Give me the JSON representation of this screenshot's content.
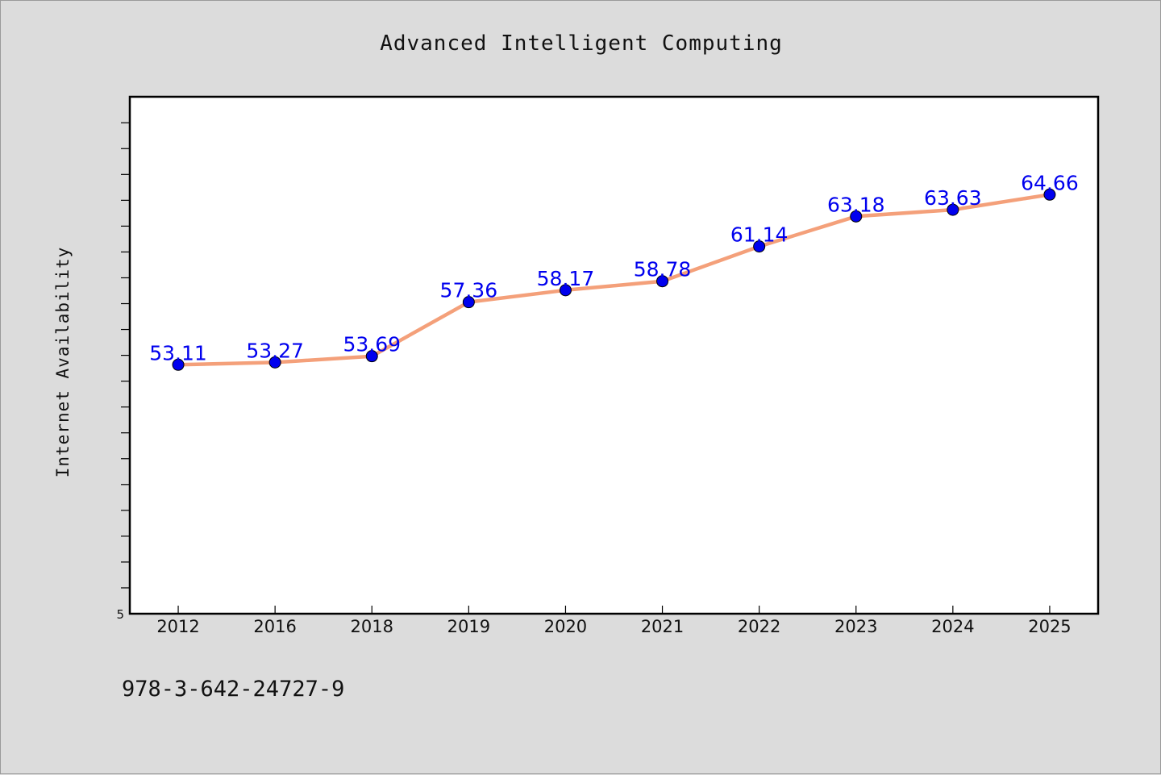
{
  "footer": {
    "text": "978-3-642-24727-9"
  },
  "colors": {
    "line": "#f4a07a",
    "marker": "#0000ee",
    "label": "#0000ee",
    "background": "#dcdcdc",
    "plot_bg": "#ffffff"
  },
  "chart_data": {
    "type": "line",
    "title": "Advanced Intelligent Computing",
    "xlabel": "",
    "ylabel": "Internet Availability",
    "categories": [
      "2012",
      "2016",
      "2018",
      "2019",
      "2020",
      "2021",
      "2022",
      "2023",
      "2024",
      "2025"
    ],
    "values": [
      53.11,
      53.27,
      53.69,
      57.36,
      58.17,
      58.78,
      61.14,
      63.18,
      63.63,
      64.66
    ],
    "data_labels": [
      "53.11",
      "53.27",
      "53.69",
      "57.36",
      "58.17",
      "58.78",
      "61.14",
      "63.18",
      "63.63",
      "64.66"
    ],
    "ylim": [
      36.21,
      71.3
    ],
    "y_tick_labels": [
      {
        "value": 36.21,
        "label": "5"
      }
    ],
    "y_minor_tick_count": 19,
    "grid": false,
    "legend": "none"
  }
}
